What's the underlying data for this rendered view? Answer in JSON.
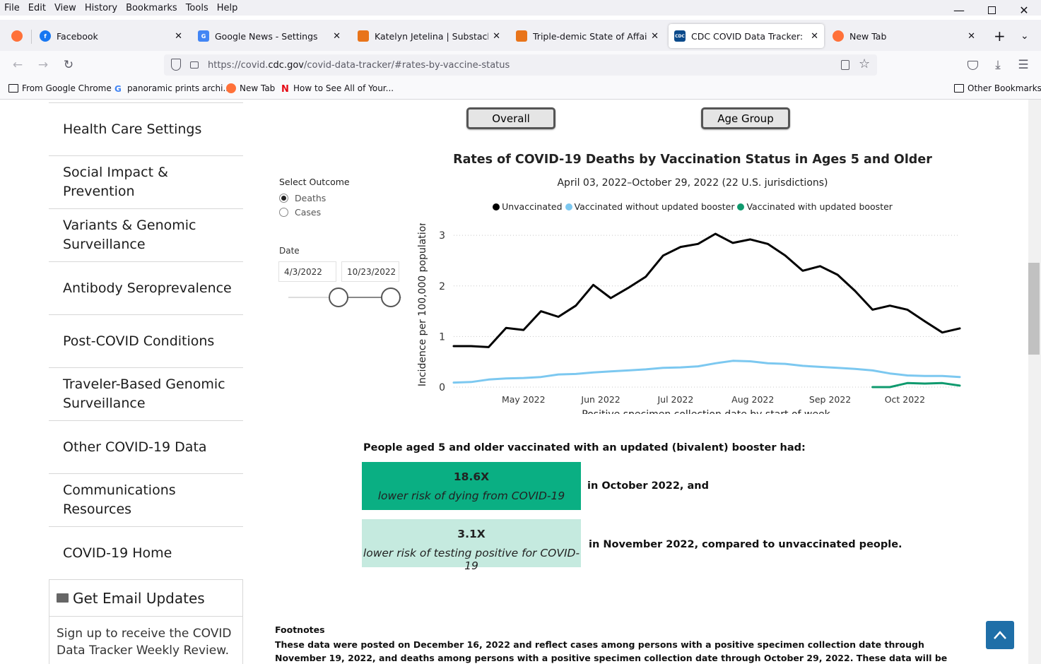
{
  "menu": [
    "File",
    "Edit",
    "View",
    "History",
    "Bookmarks",
    "Tools",
    "Help"
  ],
  "tabs": [
    {
      "label": "Facebook",
      "color": "#1877f2"
    },
    {
      "label": "Google News - Settings",
      "color": "#4285f4"
    },
    {
      "label": "Katelyn Jetelina | Substack",
      "color": "#e8741a"
    },
    {
      "label": "Triple-demic State of Affairs: Jan",
      "color": "#e8741a"
    },
    {
      "label": "CDC COVID Data Tracker: Rates",
      "color": "#0b4a8b",
      "fav_text": "CDC"
    },
    {
      "label": "New Tab",
      "color": "#ff7139"
    }
  ],
  "address": {
    "prefix": "https://covid.",
    "domain": "cdc.gov",
    "rest": "/covid-data-tracker/#rates-by-vaccine-status"
  },
  "bookmarks": [
    "From Google Chrome",
    "panoramic prints archi...",
    "New Tab",
    "How to See All of Your...",
    "Other Bookmarks"
  ],
  "sidebar": {
    "items": [
      "Health Care Settings",
      "Social Impact & Prevention",
      "Variants & Genomic Surveillance",
      "Antibody Seroprevalence",
      "Post-COVID Conditions",
      "Traveler-Based Genomic Surveillance",
      "Other COVID-19 Data",
      "Communications Resources",
      "COVID-19 Home"
    ],
    "email_title": "Get Email Updates",
    "email_text": "Sign up to receive the COVID Data Tracker Weekly Review."
  },
  "view_buttons": [
    "Overall",
    "Age Group"
  ],
  "controls": {
    "outcome_label": "Select Outcome",
    "outcome_options": [
      "Deaths",
      "Cases"
    ],
    "selected_outcome": "Deaths",
    "date_label": "Date",
    "date_start": "4/3/2022",
    "date_end": "10/23/2022"
  },
  "chart_data": {
    "type": "line",
    "title": "Rates of COVID-19 Deaths by Vaccination Status in Ages 5 and Older",
    "subtitle": "April 03, 2022–October 29, 2022 (22 U.S. jurisdictions)",
    "xlabel": "Positive specimen collection date by start of week",
    "ylabel": "Incidence per 100,000 population",
    "x_ticks": [
      "May 2022",
      "Jun 2022",
      "Jul 2022",
      "Aug 2022",
      "Sep 2022",
      "Oct 2022"
    ],
    "y_ticks": [
      0,
      1,
      2,
      3
    ],
    "ylim": [
      0,
      3.1
    ],
    "grid": "horizontal dotted",
    "legend_position": "top",
    "x": [
      "2022-04-03",
      "2022-04-10",
      "2022-04-17",
      "2022-04-24",
      "2022-05-01",
      "2022-05-08",
      "2022-05-15",
      "2022-05-22",
      "2022-05-29",
      "2022-06-05",
      "2022-06-12",
      "2022-06-19",
      "2022-06-26",
      "2022-07-03",
      "2022-07-10",
      "2022-07-17",
      "2022-07-24",
      "2022-07-31",
      "2022-08-07",
      "2022-08-14",
      "2022-08-21",
      "2022-08-28",
      "2022-09-04",
      "2022-09-11",
      "2022-09-18",
      "2022-09-25",
      "2022-10-02",
      "2022-10-09",
      "2022-10-16",
      "2022-10-23"
    ],
    "series": [
      {
        "name": "Unvaccinated",
        "color": "#000000",
        "values": [
          0.81,
          0.81,
          0.79,
          1.17,
          1.13,
          1.5,
          1.39,
          1.61,
          2.02,
          1.76,
          1.96,
          2.18,
          2.6,
          2.77,
          2.83,
          3.03,
          2.85,
          2.92,
          2.83,
          2.6,
          2.3,
          2.39,
          2.22,
          1.9,
          1.53,
          1.61,
          1.53,
          1.3,
          1.08,
          1.16
        ]
      },
      {
        "name": "Vaccinated without updated booster",
        "color": "#7cc8f0",
        "values": [
          0.09,
          0.1,
          0.15,
          0.17,
          0.18,
          0.2,
          0.25,
          0.26,
          0.29,
          0.31,
          0.33,
          0.35,
          0.38,
          0.39,
          0.41,
          0.47,
          0.52,
          0.51,
          0.47,
          0.46,
          0.42,
          0.4,
          0.38,
          0.36,
          0.33,
          0.27,
          0.23,
          0.22,
          0.22,
          0.2
        ]
      },
      {
        "name": "Vaccinated with updated booster",
        "color": "#0f9a6e",
        "values": [
          null,
          null,
          null,
          null,
          null,
          null,
          null,
          null,
          null,
          null,
          null,
          null,
          null,
          null,
          null,
          null,
          null,
          null,
          null,
          null,
          null,
          null,
          null,
          null,
          0.0,
          0.0,
          0.08,
          0.07,
          0.08,
          0.03
        ]
      }
    ]
  },
  "summary": {
    "headline": "People aged 5 and older vaccinated with an updated (bivalent) booster had:",
    "stat1_value": "18.6X",
    "stat1_desc": "lower risk of dying from COVID-19",
    "stat1_tail": "in October 2022, and",
    "stat1_color": "#0aaf83",
    "stat2_value": "3.1X",
    "stat2_desc": "lower risk of testing positive for COVID-19",
    "stat2_tail": "in November 2022, compared to unvaccinated people.",
    "stat2_color": "#c5eadf"
  },
  "footnotes": {
    "heading": "Footnotes",
    "text": "These data were posted on December 16, 2022 and reflect cases among persons with a positive specimen collection date through November 19, 2022, and deaths among persons with a positive specimen collection date through October 29, 2022. These data will be updated monthly. Please note that these"
  }
}
